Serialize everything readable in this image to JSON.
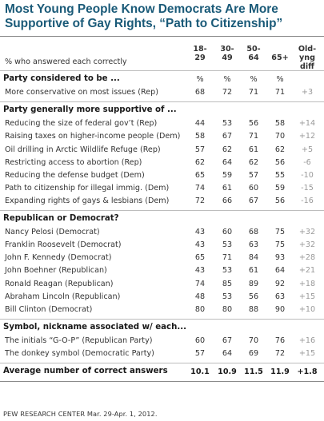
{
  "title_line1": "Most Young People Know Democrats Are More",
  "title_line2": "Supportive of Gay Rights, “Path to Citizenship”",
  "subtitle": "% who answered each correctly",
  "source": "PEW RESEARCH CENTER Mar. 29-Apr. 1, 2012.",
  "chart_data": {
    "type": "table",
    "columns": [
      {
        "l1": "18-",
        "l2": "29"
      },
      {
        "l1": "30-",
        "l2": "49"
      },
      {
        "l1": "50-",
        "l2": "64"
      },
      {
        "l1": "",
        "l2": "65+"
      },
      {
        "l1": "Old-yng",
        "l2": "diff"
      }
    ],
    "sections": [
      {
        "title": "Party considered to be ...",
        "pct_row": true,
        "rows": [
          {
            "label": "More conservative on most issues (Rep)",
            "values": [
              "68",
              "72",
              "71",
              "71",
              "+3"
            ]
          }
        ]
      },
      {
        "title": "Party generally more supportive of ...",
        "pct_row": false,
        "rows": [
          {
            "label": "Reducing the size of federal gov’t (Rep)",
            "values": [
              "44",
              "53",
              "56",
              "58",
              "+14"
            ]
          },
          {
            "label": "Raising taxes on higher-income people (Dem)",
            "values": [
              "58",
              "67",
              "71",
              "70",
              "+12"
            ]
          },
          {
            "label": "Oil drilling in Arctic Wildlife Refuge (Rep)",
            "values": [
              "57",
              "62",
              "61",
              "62",
              "+5"
            ]
          },
          {
            "label": "Restricting access to abortion (Rep)",
            "values": [
              "62",
              "64",
              "62",
              "56",
              "-6"
            ]
          },
          {
            "label": "Reducing the defense budget (Dem)",
            "values": [
              "65",
              "59",
              "57",
              "55",
              "-10"
            ]
          },
          {
            "label": "Path to citizenship for illegal immig. (Dem)",
            "values": [
              "74",
              "61",
              "60",
              "59",
              "-15"
            ]
          },
          {
            "label": "Expanding rights of gays & lesbians (Dem)",
            "values": [
              "72",
              "66",
              "67",
              "56",
              "-16"
            ]
          }
        ]
      },
      {
        "title": "Republican or Democrat?",
        "pct_row": false,
        "rows": [
          {
            "label": "Nancy Pelosi (Democrat)",
            "values": [
              "43",
              "60",
              "68",
              "75",
              "+32"
            ]
          },
          {
            "label": "Franklin Roosevelt (Democrat)",
            "values": [
              "43",
              "53",
              "63",
              "75",
              "+32"
            ]
          },
          {
            "label": "John F. Kennedy (Democrat)",
            "values": [
              "65",
              "71",
              "84",
              "93",
              "+28"
            ]
          },
          {
            "label": "John Boehner (Republican)",
            "values": [
              "43",
              "53",
              "61",
              "64",
              "+21"
            ]
          },
          {
            "label": "Ronald Reagan (Republican)",
            "values": [
              "74",
              "85",
              "89",
              "92",
              "+18"
            ]
          },
          {
            "label": "Abraham Lincoln (Republican)",
            "values": [
              "48",
              "53",
              "56",
              "63",
              "+15"
            ]
          },
          {
            "label": "Bill Clinton (Democrat)",
            "values": [
              "80",
              "80",
              "88",
              "90",
              "+10"
            ]
          }
        ]
      },
      {
        "title": "Symbol, nickname associated w/ each...",
        "pct_row": false,
        "rows": [
          {
            "label": "The initials “G-O-P” (Republican Party)",
            "values": [
              "60",
              "67",
              "70",
              "76",
              "+16"
            ]
          },
          {
            "label": "The donkey symbol (Democratic Party)",
            "values": [
              "57",
              "64",
              "69",
              "72",
              "+15"
            ]
          }
        ]
      }
    ],
    "pct_labels": [
      "%",
      "%",
      "%",
      "%"
    ],
    "average": {
      "label": "Average number of correct answers",
      "values": [
        "10.1",
        "10.9",
        "11.5",
        "11.9",
        "+1.8"
      ]
    }
  }
}
